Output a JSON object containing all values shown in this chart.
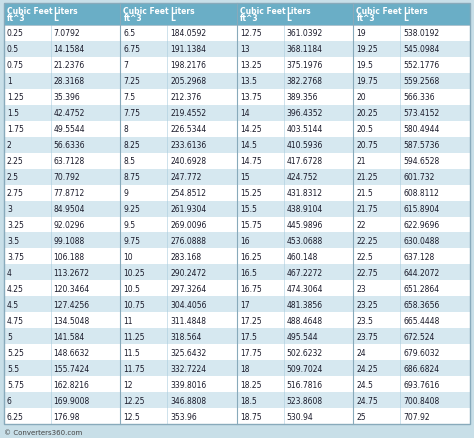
{
  "header_bg": "#6aaec6",
  "table_bg": "#c8dfe8",
  "row_bg_white": "#ffffff",
  "row_bg_light": "#d6e8f0",
  "header_text_color": "#ffffff",
  "data_text_color": "#1a1a2a",
  "footer_text": "© Converters360.com",
  "columns": [
    {
      "cubic_feet": [
        "0.25",
        "0.5",
        "0.75",
        "1",
        "1.25",
        "1.5",
        "1.75",
        "2",
        "2.25",
        "2.5",
        "2.75",
        "3",
        "3.25",
        "3.5",
        "3.75",
        "4",
        "4.25",
        "4.5",
        "4.75",
        "5",
        "5.25",
        "5.5",
        "5.75",
        "6",
        "6.25"
      ],
      "liters": [
        "7.0792",
        "14.1584",
        "21.2376",
        "28.3168",
        "35.396",
        "42.4752",
        "49.5544",
        "56.6336",
        "63.7128",
        "70.792",
        "77.8712",
        "84.9504",
        "92.0296",
        "99.1088",
        "106.188",
        "113.2672",
        "120.3464",
        "127.4256",
        "134.5048",
        "141.584",
        "148.6632",
        "155.7424",
        "162.8216",
        "169.9008",
        "176.98"
      ]
    },
    {
      "cubic_feet": [
        "6.5",
        "6.75",
        "7",
        "7.25",
        "7.5",
        "7.75",
        "8",
        "8.25",
        "8.5",
        "8.75",
        "9",
        "9.25",
        "9.5",
        "9.75",
        "10",
        "10.25",
        "10.5",
        "10.75",
        "11",
        "11.25",
        "11.5",
        "11.75",
        "12",
        "12.25",
        "12.5"
      ],
      "liters": [
        "184.0592",
        "191.1384",
        "198.2176",
        "205.2968",
        "212.376",
        "219.4552",
        "226.5344",
        "233.6136",
        "240.6928",
        "247.772",
        "254.8512",
        "261.9304",
        "269.0096",
        "276.0888",
        "283.168",
        "290.2472",
        "297.3264",
        "304.4056",
        "311.4848",
        "318.564",
        "325.6432",
        "332.7224",
        "339.8016",
        "346.8808",
        "353.96"
      ]
    },
    {
      "cubic_feet": [
        "12.75",
        "13",
        "13.25",
        "13.5",
        "13.75",
        "14",
        "14.25",
        "14.5",
        "14.75",
        "15",
        "15.25",
        "15.5",
        "15.75",
        "16",
        "16.25",
        "16.5",
        "16.75",
        "17",
        "17.25",
        "17.5",
        "17.75",
        "18",
        "18.25",
        "18.5",
        "18.75"
      ],
      "liters": [
        "361.0392",
        "368.1184",
        "375.1976",
        "382.2768",
        "389.356",
        "396.4352",
        "403.5144",
        "410.5936",
        "417.6728",
        "424.752",
        "431.8312",
        "438.9104",
        "445.9896",
        "453.0688",
        "460.148",
        "467.2272",
        "474.3064",
        "481.3856",
        "488.4648",
        "495.544",
        "502.6232",
        "509.7024",
        "516.7816",
        "523.8608",
        "530.94"
      ]
    },
    {
      "cubic_feet": [
        "19",
        "19.25",
        "19.5",
        "19.75",
        "20",
        "20.25",
        "20.5",
        "20.75",
        "21",
        "21.25",
        "21.5",
        "21.75",
        "22",
        "22.25",
        "22.5",
        "22.75",
        "23",
        "23.25",
        "23.5",
        "23.75",
        "24",
        "24.25",
        "24.5",
        "24.75",
        "25"
      ],
      "liters": [
        "538.0192",
        "545.0984",
        "552.1776",
        "559.2568",
        "566.336",
        "573.4152",
        "580.4944",
        "587.5736",
        "594.6528",
        "601.732",
        "608.8112",
        "615.8904",
        "622.9696",
        "630.0488",
        "637.128",
        "644.2072",
        "651.2864",
        "658.3656",
        "665.4448",
        "672.524",
        "679.6032",
        "686.6824",
        "693.7616",
        "700.8408",
        "707.92"
      ]
    }
  ]
}
